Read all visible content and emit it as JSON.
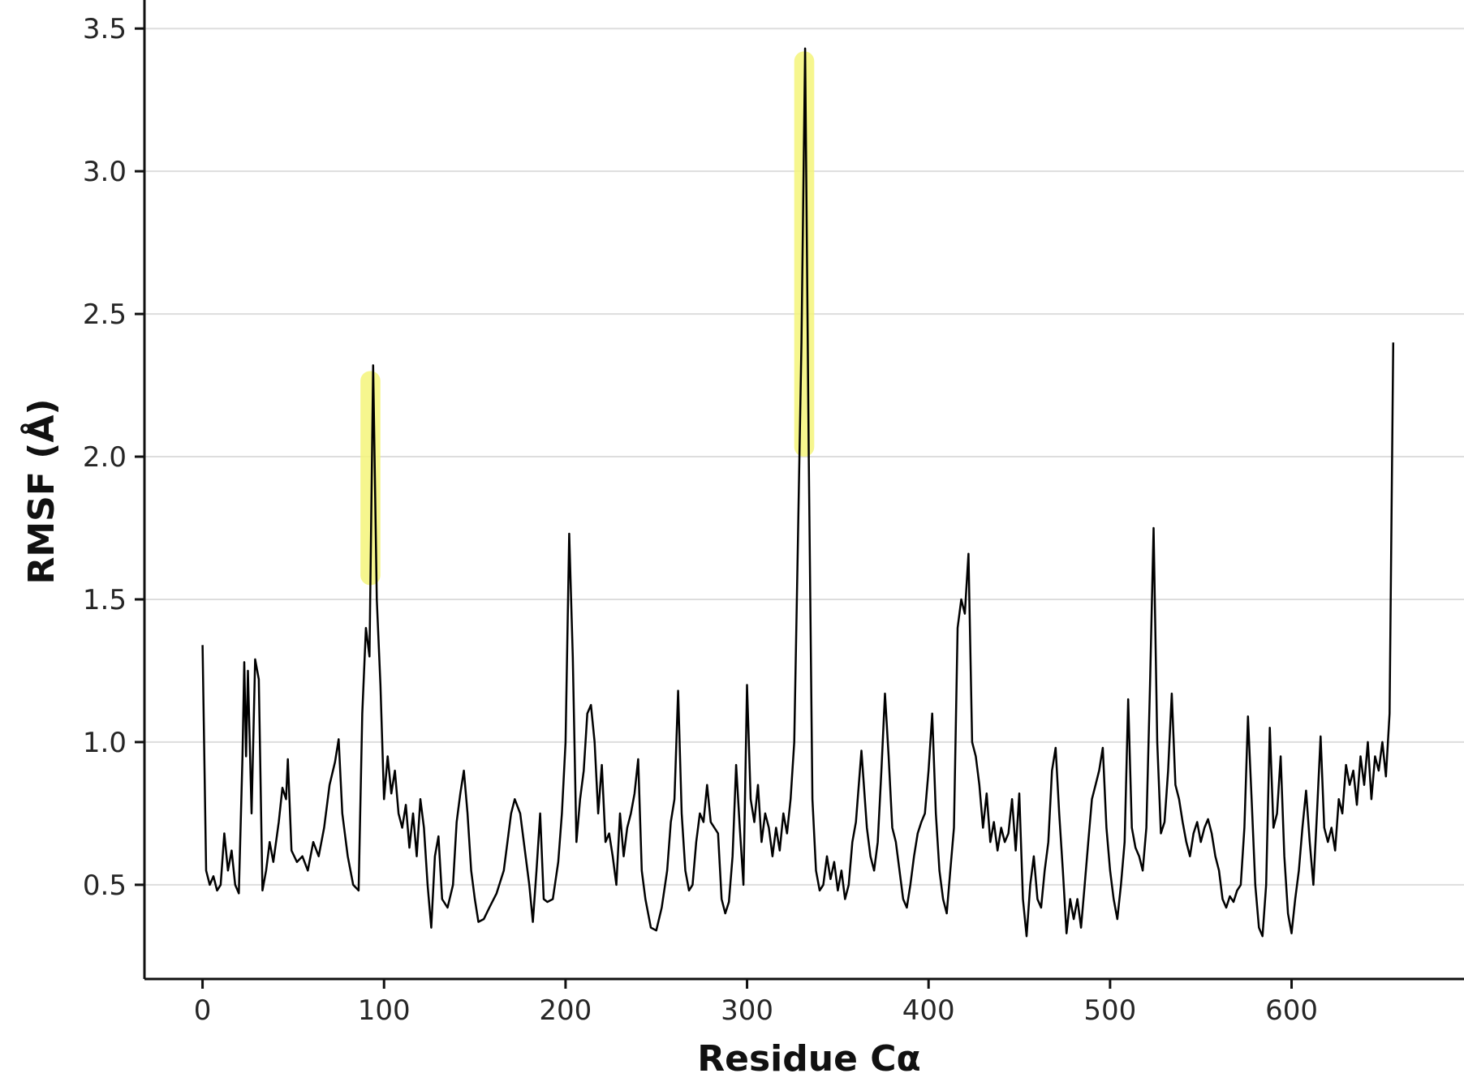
{
  "chart_data": {
    "type": "line",
    "title": "",
    "xlabel": "Residue Cα",
    "ylabel": "RMSF (Å)",
    "xlim": [
      -32,
      695
    ],
    "ylim": [
      0.17,
      3.6
    ],
    "x_ticks": [
      0,
      100,
      200,
      300,
      400,
      500,
      600
    ],
    "x_tick_labels": [
      "0",
      "100",
      "200",
      "300",
      "400",
      "500",
      "600"
    ],
    "y_ticks": [
      0.5,
      1.0,
      1.5,
      2.0,
      2.5,
      3.0,
      3.5
    ],
    "y_tick_labels": [
      "0.5",
      "1.0",
      "1.5",
      "2.0",
      "2.5",
      "3.0",
      "3.5"
    ],
    "grid": "horizontal",
    "legend": "none",
    "line_color": "#000000",
    "highlight_color": "#f5f57a",
    "highlights": [
      {
        "x_start": 87,
        "x_end": 98,
        "y_start": 1.55,
        "y_end": 2.3
      },
      {
        "x_start": 326,
        "x_end": 337,
        "y_start": 2.0,
        "y_end": 3.42
      }
    ],
    "series": [
      {
        "points": [
          [
            0,
            1.34
          ],
          [
            2,
            0.55
          ],
          [
            4,
            0.5
          ],
          [
            6,
            0.53
          ],
          [
            8,
            0.48
          ],
          [
            10,
            0.5
          ],
          [
            12,
            0.68
          ],
          [
            14,
            0.55
          ],
          [
            16,
            0.62
          ],
          [
            18,
            0.5
          ],
          [
            20,
            0.47
          ],
          [
            22,
            0.95
          ],
          [
            23,
            1.28
          ],
          [
            24,
            0.95
          ],
          [
            25,
            1.25
          ],
          [
            27,
            0.75
          ],
          [
            29,
            1.29
          ],
          [
            31,
            1.22
          ],
          [
            33,
            0.48
          ],
          [
            35,
            0.55
          ],
          [
            37,
            0.65
          ],
          [
            39,
            0.58
          ],
          [
            42,
            0.72
          ],
          [
            44,
            0.84
          ],
          [
            46,
            0.8
          ],
          [
            47,
            0.94
          ],
          [
            49,
            0.62
          ],
          [
            52,
            0.58
          ],
          [
            55,
            0.6
          ],
          [
            58,
            0.55
          ],
          [
            61,
            0.65
          ],
          [
            64,
            0.6
          ],
          [
            67,
            0.7
          ],
          [
            70,
            0.85
          ],
          [
            73,
            0.93
          ],
          [
            75,
            1.01
          ],
          [
            77,
            0.75
          ],
          [
            80,
            0.6
          ],
          [
            83,
            0.5
          ],
          [
            86,
            0.48
          ],
          [
            88,
            1.1
          ],
          [
            90,
            1.4
          ],
          [
            92,
            1.3
          ],
          [
            94,
            2.32
          ],
          [
            96,
            1.5
          ],
          [
            98,
            1.2
          ],
          [
            100,
            0.8
          ],
          [
            102,
            0.95
          ],
          [
            104,
            0.82
          ],
          [
            106,
            0.9
          ],
          [
            108,
            0.75
          ],
          [
            110,
            0.7
          ],
          [
            112,
            0.78
          ],
          [
            114,
            0.63
          ],
          [
            116,
            0.75
          ],
          [
            118,
            0.6
          ],
          [
            120,
            0.8
          ],
          [
            122,
            0.7
          ],
          [
            124,
            0.5
          ],
          [
            126,
            0.35
          ],
          [
            128,
            0.6
          ],
          [
            130,
            0.67
          ],
          [
            132,
            0.45
          ],
          [
            135,
            0.42
          ],
          [
            138,
            0.5
          ],
          [
            140,
            0.72
          ],
          [
            142,
            0.82
          ],
          [
            144,
            0.9
          ],
          [
            146,
            0.75
          ],
          [
            148,
            0.55
          ],
          [
            150,
            0.45
          ],
          [
            152,
            0.37
          ],
          [
            155,
            0.38
          ],
          [
            158,
            0.42
          ],
          [
            162,
            0.47
          ],
          [
            166,
            0.55
          ],
          [
            168,
            0.65
          ],
          [
            170,
            0.75
          ],
          [
            172,
            0.8
          ],
          [
            175,
            0.75
          ],
          [
            178,
            0.6
          ],
          [
            180,
            0.5
          ],
          [
            182,
            0.37
          ],
          [
            184,
            0.55
          ],
          [
            186,
            0.75
          ],
          [
            188,
            0.45
          ],
          [
            190,
            0.44
          ],
          [
            193,
            0.45
          ],
          [
            196,
            0.58
          ],
          [
            198,
            0.75
          ],
          [
            200,
            1.0
          ],
          [
            202,
            1.73
          ],
          [
            204,
            1.3
          ],
          [
            206,
            0.65
          ],
          [
            208,
            0.8
          ],
          [
            210,
            0.9
          ],
          [
            212,
            1.1
          ],
          [
            214,
            1.13
          ],
          [
            216,
            1.0
          ],
          [
            218,
            0.75
          ],
          [
            220,
            0.92
          ],
          [
            222,
            0.65
          ],
          [
            224,
            0.68
          ],
          [
            226,
            0.6
          ],
          [
            228,
            0.5
          ],
          [
            230,
            0.75
          ],
          [
            232,
            0.6
          ],
          [
            234,
            0.7
          ],
          [
            236,
            0.75
          ],
          [
            238,
            0.82
          ],
          [
            240,
            0.94
          ],
          [
            242,
            0.55
          ],
          [
            244,
            0.45
          ],
          [
            247,
            0.35
          ],
          [
            250,
            0.34
          ],
          [
            253,
            0.42
          ],
          [
            256,
            0.55
          ],
          [
            258,
            0.72
          ],
          [
            260,
            0.8
          ],
          [
            262,
            1.18
          ],
          [
            264,
            0.75
          ],
          [
            266,
            0.55
          ],
          [
            268,
            0.48
          ],
          [
            270,
            0.5
          ],
          [
            272,
            0.65
          ],
          [
            274,
            0.75
          ],
          [
            276,
            0.72
          ],
          [
            278,
            0.85
          ],
          [
            280,
            0.72
          ],
          [
            282,
            0.7
          ],
          [
            284,
            0.68
          ],
          [
            286,
            0.45
          ],
          [
            288,
            0.4
          ],
          [
            290,
            0.44
          ],
          [
            292,
            0.6
          ],
          [
            294,
            0.92
          ],
          [
            296,
            0.7
          ],
          [
            298,
            0.5
          ],
          [
            300,
            1.2
          ],
          [
            302,
            0.8
          ],
          [
            304,
            0.72
          ],
          [
            306,
            0.85
          ],
          [
            308,
            0.65
          ],
          [
            310,
            0.75
          ],
          [
            312,
            0.7
          ],
          [
            314,
            0.6
          ],
          [
            316,
            0.7
          ],
          [
            318,
            0.62
          ],
          [
            320,
            0.75
          ],
          [
            322,
            0.68
          ],
          [
            324,
            0.8
          ],
          [
            326,
            1.0
          ],
          [
            328,
            1.7
          ],
          [
            330,
            2.4
          ],
          [
            332,
            3.43
          ],
          [
            334,
            2.0
          ],
          [
            336,
            0.8
          ],
          [
            338,
            0.55
          ],
          [
            340,
            0.48
          ],
          [
            342,
            0.5
          ],
          [
            344,
            0.6
          ],
          [
            346,
            0.52
          ],
          [
            348,
            0.58
          ],
          [
            350,
            0.48
          ],
          [
            352,
            0.55
          ],
          [
            354,
            0.45
          ],
          [
            356,
            0.5
          ],
          [
            358,
            0.65
          ],
          [
            360,
            0.72
          ],
          [
            363,
            0.97
          ],
          [
            366,
            0.7
          ],
          [
            368,
            0.6
          ],
          [
            370,
            0.55
          ],
          [
            372,
            0.65
          ],
          [
            374,
            0.9
          ],
          [
            376,
            1.17
          ],
          [
            378,
            0.95
          ],
          [
            380,
            0.7
          ],
          [
            382,
            0.65
          ],
          [
            384,
            0.55
          ],
          [
            386,
            0.45
          ],
          [
            388,
            0.42
          ],
          [
            390,
            0.5
          ],
          [
            392,
            0.6
          ],
          [
            394,
            0.68
          ],
          [
            396,
            0.72
          ],
          [
            398,
            0.75
          ],
          [
            400,
            0.9
          ],
          [
            402,
            1.1
          ],
          [
            404,
            0.75
          ],
          [
            406,
            0.55
          ],
          [
            408,
            0.45
          ],
          [
            410,
            0.4
          ],
          [
            412,
            0.55
          ],
          [
            414,
            0.7
          ],
          [
            416,
            1.4
          ],
          [
            418,
            1.5
          ],
          [
            420,
            1.45
          ],
          [
            422,
            1.66
          ],
          [
            424,
            1.0
          ],
          [
            426,
            0.95
          ],
          [
            428,
            0.85
          ],
          [
            430,
            0.7
          ],
          [
            432,
            0.82
          ],
          [
            434,
            0.65
          ],
          [
            436,
            0.72
          ],
          [
            438,
            0.62
          ],
          [
            440,
            0.7
          ],
          [
            442,
            0.65
          ],
          [
            444,
            0.68
          ],
          [
            446,
            0.8
          ],
          [
            448,
            0.62
          ],
          [
            450,
            0.82
          ],
          [
            452,
            0.45
          ],
          [
            454,
            0.32
          ],
          [
            456,
            0.5
          ],
          [
            458,
            0.6
          ],
          [
            460,
            0.45
          ],
          [
            462,
            0.42
          ],
          [
            464,
            0.55
          ],
          [
            466,
            0.65
          ],
          [
            468,
            0.9
          ],
          [
            470,
            0.98
          ],
          [
            472,
            0.75
          ],
          [
            474,
            0.55
          ],
          [
            476,
            0.33
          ],
          [
            478,
            0.45
          ],
          [
            480,
            0.38
          ],
          [
            482,
            0.45
          ],
          [
            484,
            0.35
          ],
          [
            486,
            0.5
          ],
          [
            488,
            0.65
          ],
          [
            490,
            0.8
          ],
          [
            492,
            0.85
          ],
          [
            494,
            0.9
          ],
          [
            496,
            0.98
          ],
          [
            498,
            0.7
          ],
          [
            500,
            0.55
          ],
          [
            502,
            0.45
          ],
          [
            504,
            0.38
          ],
          [
            506,
            0.5
          ],
          [
            508,
            0.65
          ],
          [
            510,
            1.15
          ],
          [
            512,
            0.7
          ],
          [
            514,
            0.63
          ],
          [
            516,
            0.6
          ],
          [
            518,
            0.55
          ],
          [
            520,
            0.7
          ],
          [
            522,
            1.2
          ],
          [
            524,
            1.75
          ],
          [
            526,
            1.0
          ],
          [
            528,
            0.68
          ],
          [
            530,
            0.72
          ],
          [
            532,
            0.9
          ],
          [
            534,
            1.17
          ],
          [
            536,
            0.85
          ],
          [
            538,
            0.8
          ],
          [
            540,
            0.72
          ],
          [
            542,
            0.65
          ],
          [
            544,
            0.6
          ],
          [
            546,
            0.68
          ],
          [
            548,
            0.72
          ],
          [
            550,
            0.65
          ],
          [
            552,
            0.7
          ],
          [
            554,
            0.73
          ],
          [
            556,
            0.68
          ],
          [
            558,
            0.6
          ],
          [
            560,
            0.55
          ],
          [
            562,
            0.45
          ],
          [
            564,
            0.42
          ],
          [
            566,
            0.46
          ],
          [
            568,
            0.44
          ],
          [
            570,
            0.48
          ],
          [
            572,
            0.5
          ],
          [
            574,
            0.7
          ],
          [
            576,
            1.09
          ],
          [
            578,
            0.8
          ],
          [
            580,
            0.5
          ],
          [
            582,
            0.35
          ],
          [
            584,
            0.32
          ],
          [
            586,
            0.5
          ],
          [
            588,
            1.05
          ],
          [
            590,
            0.7
          ],
          [
            592,
            0.75
          ],
          [
            594,
            0.95
          ],
          [
            596,
            0.6
          ],
          [
            598,
            0.4
          ],
          [
            600,
            0.33
          ],
          [
            602,
            0.45
          ],
          [
            604,
            0.55
          ],
          [
            606,
            0.7
          ],
          [
            608,
            0.83
          ],
          [
            610,
            0.65
          ],
          [
            612,
            0.5
          ],
          [
            614,
            0.75
          ],
          [
            616,
            1.02
          ],
          [
            618,
            0.7
          ],
          [
            620,
            0.65
          ],
          [
            622,
            0.7
          ],
          [
            624,
            0.62
          ],
          [
            626,
            0.8
          ],
          [
            628,
            0.75
          ],
          [
            630,
            0.92
          ],
          [
            632,
            0.85
          ],
          [
            634,
            0.9
          ],
          [
            636,
            0.78
          ],
          [
            638,
            0.95
          ],
          [
            640,
            0.85
          ],
          [
            642,
            1.0
          ],
          [
            644,
            0.8
          ],
          [
            646,
            0.95
          ],
          [
            648,
            0.9
          ],
          [
            650,
            1.0
          ],
          [
            652,
            0.88
          ],
          [
            654,
            1.1
          ],
          [
            656,
            2.4
          ]
        ]
      }
    ]
  }
}
